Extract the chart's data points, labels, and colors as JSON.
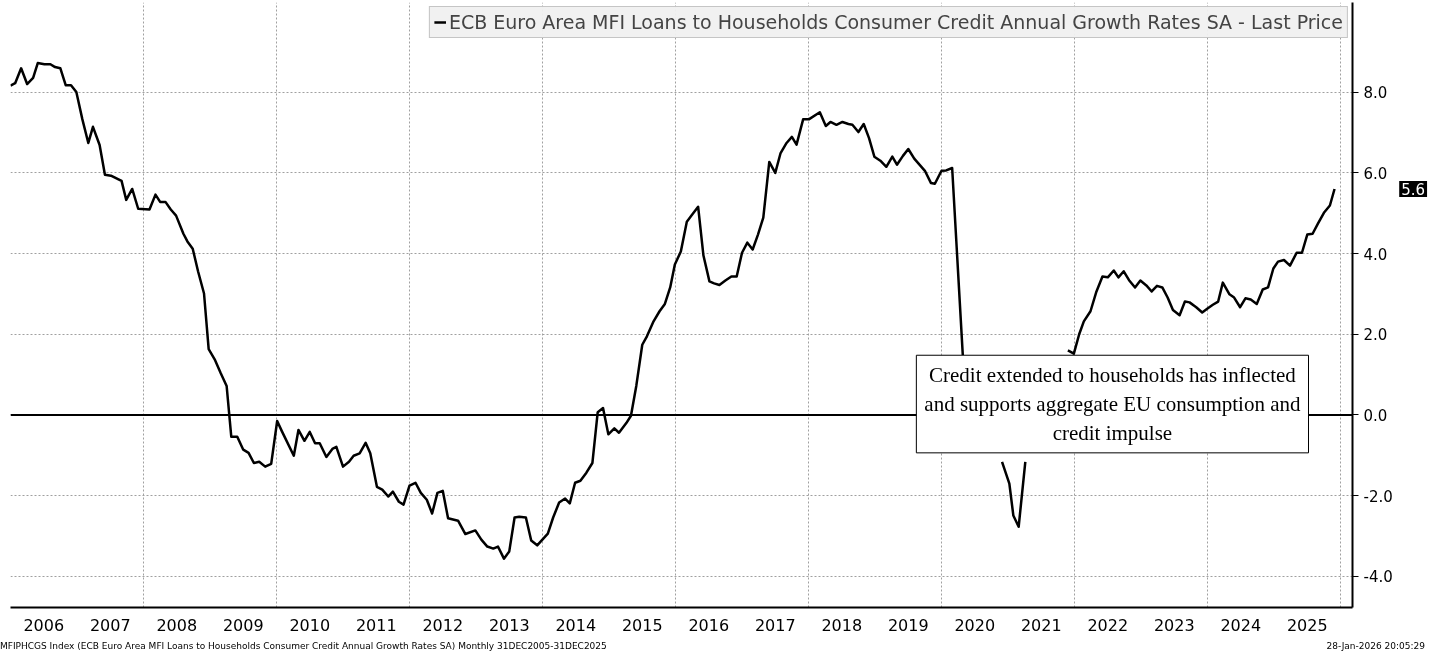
{
  "chart_data": {
    "type": "line",
    "x": [
      2006.0,
      2006.07,
      2006.16,
      2006.25,
      2006.34,
      2006.41,
      2006.51,
      2006.6,
      2006.67,
      2006.75,
      2006.83,
      2006.91,
      2006.99,
      2007.08,
      2007.17,
      2007.24,
      2007.34,
      2007.42,
      2007.51,
      2007.67,
      2007.74,
      2007.83,
      2007.92,
      2008.09,
      2008.18,
      2008.25,
      2008.33,
      2008.41,
      2008.49,
      2008.6,
      2008.66,
      2008.74,
      2008.82,
      2008.91,
      2008.98,
      2009.07,
      2009.16,
      2009.25,
      2009.32,
      2009.41,
      2009.5,
      2009.58,
      2009.66,
      2009.74,
      2009.83,
      2009.92,
      2010.01,
      2010.08,
      2010.26,
      2010.33,
      2010.42,
      2010.5,
      2010.58,
      2010.65,
      2010.75,
      2010.84,
      2010.9,
      2011.0,
      2011.09,
      2011.16,
      2011.25,
      2011.34,
      2011.41,
      2011.51,
      2011.59,
      2011.68,
      2011.75,
      2011.84,
      2011.91,
      2012.0,
      2012.09,
      2012.17,
      2012.26,
      2012.34,
      2012.42,
      2012.5,
      2012.58,
      2012.73,
      2012.84,
      2012.99,
      2013.08,
      2013.17,
      2013.26,
      2013.33,
      2013.42,
      2013.5,
      2013.58,
      2013.65,
      2013.75,
      2013.83,
      2013.92,
      2014.08,
      2014.16,
      2014.25,
      2014.34,
      2014.41,
      2014.49,
      2014.57,
      2014.66,
      2014.75,
      2014.83,
      2014.91,
      2014.99,
      2015.08,
      2015.15,
      2015.26,
      2015.33,
      2015.41,
      2015.5,
      2015.57,
      2015.67,
      2015.76,
      2015.84,
      2015.92,
      2015.99,
      2016.08,
      2016.17,
      2016.24,
      2016.34,
      2016.42,
      2016.51,
      2016.58,
      2016.66,
      2016.75,
      2016.84,
      2016.92,
      2017.0,
      2017.08,
      2017.16,
      2017.24,
      2017.32,
      2017.41,
      2017.5,
      2017.58,
      2017.67,
      2017.75,
      2017.82,
      2017.92,
      2018.01,
      2018.17,
      2018.26,
      2018.33,
      2018.42,
      2018.51,
      2018.6,
      2018.66,
      2018.75,
      2018.83,
      2018.91,
      2018.99,
      2019.08,
      2019.17,
      2019.26,
      2019.33,
      2019.42,
      2019.5,
      2019.59,
      2019.75,
      2019.84,
      2019.9,
      2020.0,
      2020.07,
      2020.16,
      2020.32,
      2020.6,
      2020.91,
      2021.02,
      2021.08,
      2021.16,
      2021.26,
      2021.55,
      2021.9,
      2021.99,
      2022.07,
      2022.14,
      2022.24,
      2022.33,
      2022.42,
      2022.5,
      2022.59,
      2022.66,
      2022.74,
      2022.82,
      2022.91,
      2022.99,
      2023.08,
      2023.16,
      2023.24,
      2023.32,
      2023.4,
      2023.48,
      2023.58,
      2023.66,
      2023.73,
      2023.83,
      2023.92,
      2024.0,
      2024.08,
      2024.16,
      2024.23,
      2024.33,
      2024.4,
      2024.49,
      2024.57,
      2024.65,
      2024.74,
      2024.83,
      2024.91,
      2024.99,
      2025.06,
      2025.15,
      2025.24,
      2025.34,
      2025.42,
      2025.5,
      2025.58,
      2025.66,
      2025.75,
      2025.84,
      2025.91
    ],
    "series": [
      {
        "name": "ECB Euro Area MFI Loans to Households Consumer Credit Annual Growth Rates SA - Last Price",
        "color": "#000000",
        "values": [
          8.16,
          8.22,
          8.59,
          8.2,
          8.35,
          8.72,
          8.69,
          8.69,
          8.62,
          8.59,
          8.17,
          8.17,
          8.0,
          7.33,
          6.74,
          7.14,
          6.69,
          5.95,
          5.93,
          5.8,
          5.33,
          5.6,
          5.11,
          5.09,
          5.46,
          5.28,
          5.28,
          5.09,
          4.94,
          4.49,
          4.3,
          4.12,
          3.56,
          3.01,
          1.63,
          1.38,
          1.04,
          0.72,
          -0.54,
          -0.54,
          -0.86,
          -0.94,
          -1.19,
          -1.16,
          -1.28,
          -1.21,
          -0.15,
          -0.4,
          -1.01,
          -0.37,
          -0.64,
          -0.42,
          -0.7,
          -0.7,
          -1.04,
          -0.84,
          -0.79,
          -1.28,
          -1.16,
          -1.01,
          -0.95,
          -0.69,
          -0.95,
          -1.78,
          -1.85,
          -2.02,
          -1.9,
          -2.15,
          -2.22,
          -1.75,
          -1.68,
          -1.93,
          -2.1,
          -2.44,
          -1.93,
          -1.88,
          -2.56,
          -2.62,
          -2.95,
          -2.86,
          -3.09,
          -3.26,
          -3.31,
          -3.26,
          -3.56,
          -3.38,
          -2.54,
          -2.52,
          -2.54,
          -3.11,
          -3.23,
          -2.94,
          -2.54,
          -2.17,
          -2.07,
          -2.19,
          -1.68,
          -1.63,
          -1.43,
          -1.19,
          0.07,
          0.17,
          -0.48,
          -0.33,
          -0.44,
          -0.2,
          -0.02,
          0.72,
          1.74,
          1.95,
          2.32,
          2.57,
          2.75,
          3.16,
          3.73,
          4.05,
          4.79,
          4.94,
          5.16,
          3.95,
          3.31,
          3.26,
          3.22,
          3.33,
          3.43,
          3.43,
          4.02,
          4.27,
          4.1,
          4.47,
          4.89,
          6.27,
          6.0,
          6.49,
          6.74,
          6.89,
          6.7,
          7.33,
          7.33,
          7.5,
          7.16,
          7.26,
          7.19,
          7.26,
          7.21,
          7.19,
          7.01,
          7.21,
          6.86,
          6.4,
          6.3,
          6.15,
          6.4,
          6.2,
          6.42,
          6.59,
          6.35,
          6.05,
          5.75,
          5.73,
          6.05,
          6.06,
          6.12,
          1.48,
          null,
          -1.16,
          -1.7,
          -2.49,
          -2.77,
          -1.16,
          null,
          1.6,
          1.52,
          2.0,
          2.32,
          2.57,
          3.06,
          3.43,
          3.41,
          3.58,
          3.41,
          3.56,
          3.34,
          3.16,
          3.33,
          3.21,
          3.06,
          3.2,
          3.16,
          2.91,
          2.6,
          2.47,
          2.81,
          2.79,
          2.67,
          2.54,
          2.64,
          2.73,
          2.81,
          3.28,
          2.99,
          2.91,
          2.67,
          2.89,
          2.86,
          2.75,
          3.11,
          3.16,
          3.63,
          3.8,
          3.84,
          3.7,
          4.02,
          4.02,
          4.47,
          4.49,
          4.74,
          5.01,
          5.19,
          5.6
        ]
      }
    ],
    "xlim": [
      2006.0,
      2026.18
    ],
    "xticks": [
      {
        "value": 2006.5,
        "label": "2006"
      },
      {
        "value": 2007.5,
        "label": "2007"
      },
      {
        "value": 2008.5,
        "label": "2008"
      },
      {
        "value": 2009.5,
        "label": "2009"
      },
      {
        "value": 2010.5,
        "label": "2010"
      },
      {
        "value": 2011.5,
        "label": "2011"
      },
      {
        "value": 2012.5,
        "label": "2012"
      },
      {
        "value": 2013.5,
        "label": "2013"
      },
      {
        "value": 2014.5,
        "label": "2014"
      },
      {
        "value": 2015.5,
        "label": "2015"
      },
      {
        "value": 2016.5,
        "label": "2016"
      },
      {
        "value": 2017.5,
        "label": "2017"
      },
      {
        "value": 2018.5,
        "label": "2018"
      },
      {
        "value": 2019.5,
        "label": "2019"
      },
      {
        "value": 2020.5,
        "label": "2020"
      },
      {
        "value": 2021.5,
        "label": "2021"
      },
      {
        "value": 2022.5,
        "label": "2022"
      },
      {
        "value": 2023.5,
        "label": "2023"
      },
      {
        "value": 2024.5,
        "label": "2024"
      },
      {
        "value": 2025.5,
        "label": "2025"
      },
      {
        "value": 2008,
        "label": null
      },
      {
        "value": 2010,
        "label": null
      },
      {
        "value": 2012,
        "label": null
      },
      {
        "value": 2014,
        "label": null
      },
      {
        "value": 2016,
        "label": null
      },
      {
        "value": 2018,
        "label": null
      },
      {
        "value": 2020,
        "label": null
      },
      {
        "value": 2022,
        "label": null
      },
      {
        "value": 2024,
        "label": null
      },
      {
        "value": 2026,
        "label": null
      }
    ],
    "ylim": [
      -4.77,
      10.22
    ],
    "yticks": [
      {
        "value": -4,
        "label": "-4.0"
      },
      {
        "value": -2,
        "label": "-2.0"
      },
      {
        "value": 0,
        "label": "0.0"
      },
      {
        "value": 2,
        "label": "2.0"
      },
      {
        "value": 4,
        "label": "4.0"
      },
      {
        "value": 6,
        "label": "6.0"
      },
      {
        "value": 8,
        "label": "8.0"
      }
    ],
    "ref_lines": [
      {
        "axis": "y",
        "value": 0,
        "color": "#000000",
        "line_style": "solid"
      }
    ],
    "grid": true,
    "legend": "top right",
    "line_style": "solid",
    "annotations": [
      "5.6",
      "Credit extended to households has inflected\nand supports aggregate EU consumption and\ncredit impulse",
      "MFIPHCGS Index (ECB Euro Area MFI Loans to Households Consumer Credit Annual Growth Rates SA) Monthly 31DEC2005-31DEC2025",
      "28-Jan-2026 20:05:29"
    ]
  }
}
